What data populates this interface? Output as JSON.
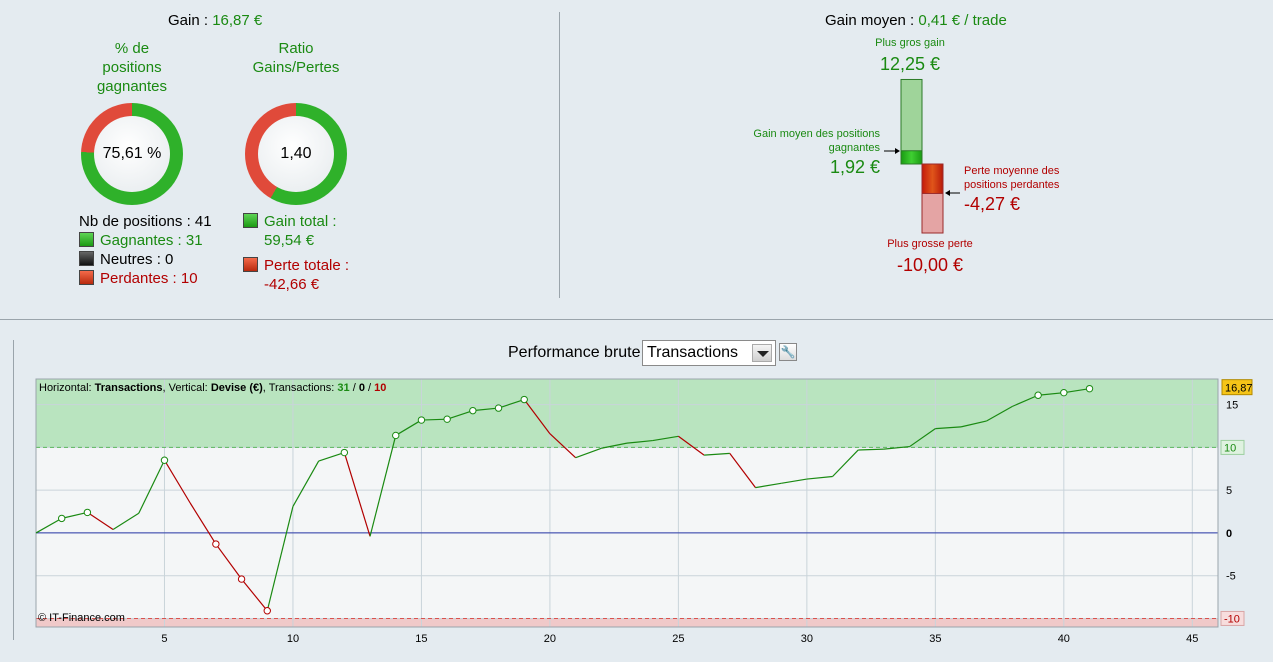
{
  "summary": {
    "gain_label": "Gain :",
    "gain_value": "16,87 €",
    "pct_title_1": "% de",
    "pct_title_2": "positions",
    "pct_title_3": "gagnantes",
    "pct_value": "75,61 %",
    "win_fraction": 0.7561,
    "ratio_title_1": "Ratio",
    "ratio_title_2": "Gains/Pertes",
    "ratio_value": "1,40",
    "ratio_gain_fraction": 0.583,
    "nb_positions": "Nb de positions : 41",
    "gagnantes": "Gagnantes : 31",
    "neutres": "Neutres : 0",
    "perdantes": "Perdantes : 10",
    "gain_total_label": "Gain total :",
    "gain_total_value": "59,54 €",
    "perte_totale_label": "Perte totale :",
    "perte_totale_value": "-42,66 €"
  },
  "average": {
    "label": "Gain moyen :",
    "value": "0,41 € / trade",
    "max_gain_label": "Plus gros gain",
    "max_gain_value": "12,25 €",
    "avg_gain_label_1": "Gain moyen des positions",
    "avg_gain_label_2": "gagnantes",
    "avg_gain_value": "1,92 €",
    "avg_loss_label_1": "Perte moyenne des",
    "avg_loss_label_2": "positions perdantes",
    "avg_loss_value": "-4,27 €",
    "max_loss_label": "Plus grosse perte",
    "max_loss_value": "-10,00 €",
    "max_gain_num": 12.25,
    "avg_gain_num": 1.92,
    "avg_loss_num": -4.27,
    "max_loss_num": -10.0
  },
  "controls": {
    "performance_label": "Performance brute",
    "dropdown_value": "Transactions",
    "settings_icon": "wrench-icon"
  },
  "chart_info": {
    "horizontal_label": "Horizontal:",
    "horizontal_value": "Transactions",
    "vertical_label": ", Vertical:",
    "vertical_value": "Devise (€)",
    "transactions_label": ", Transactions:",
    "wins": "31",
    "neutral": "0",
    "losses": "10",
    "sep": " / ",
    "copyright": "© IT-Finance.com",
    "last_value_badge": "16,87",
    "upper_level_badge": "10",
    "lower_level_badge": "-10"
  },
  "colors": {
    "gain": "#1a8a12",
    "loss": "#b20000",
    "zero_line": "#2a3aa8",
    "upper_zone": "#b9e4bf",
    "lower_zone": "#f0c9c9",
    "badge": "#f5c418"
  },
  "chart_data": {
    "type": "line",
    "xlim": [
      0,
      46
    ],
    "ylim": [
      -11,
      18
    ],
    "x_ticks": [
      5,
      10,
      15,
      20,
      25,
      30,
      35,
      40,
      45
    ],
    "y_ticks": [
      15,
      10,
      5,
      0,
      -5,
      -10
    ],
    "y_tick_labels": [
      "15",
      "10",
      "5",
      "0",
      "-5",
      "-10"
    ],
    "upper_level": 10,
    "lower_level": -10,
    "x": [
      0,
      1,
      2,
      3,
      4,
      5,
      6,
      7,
      8,
      9,
      10,
      11,
      12,
      13,
      14,
      15,
      16,
      17,
      18,
      19,
      20,
      21,
      22,
      23,
      24,
      25,
      26,
      27,
      28,
      29,
      30,
      31,
      32,
      33,
      34,
      35,
      36,
      37,
      38,
      39,
      40,
      41
    ],
    "y": [
      0,
      1.7,
      2.4,
      0.4,
      2.3,
      8.5,
      3.5,
      -1.3,
      -5.4,
      -9.1,
      3.1,
      8.4,
      9.4,
      -0.4,
      11.4,
      13.2,
      13.3,
      14.3,
      14.6,
      15.6,
      11.6,
      8.8,
      9.9,
      10.5,
      10.8,
      11.3,
      9.1,
      9.3,
      5.3,
      5.8,
      6.3,
      6.6,
      9.7,
      9.8,
      10.1,
      12.2,
      12.4,
      13.1,
      14.8,
      16.1,
      16.4,
      16.87
    ],
    "markers": [
      1,
      2,
      5,
      7,
      8,
      9,
      12,
      14,
      15,
      16,
      17,
      18,
      19,
      39,
      40,
      41
    ]
  }
}
